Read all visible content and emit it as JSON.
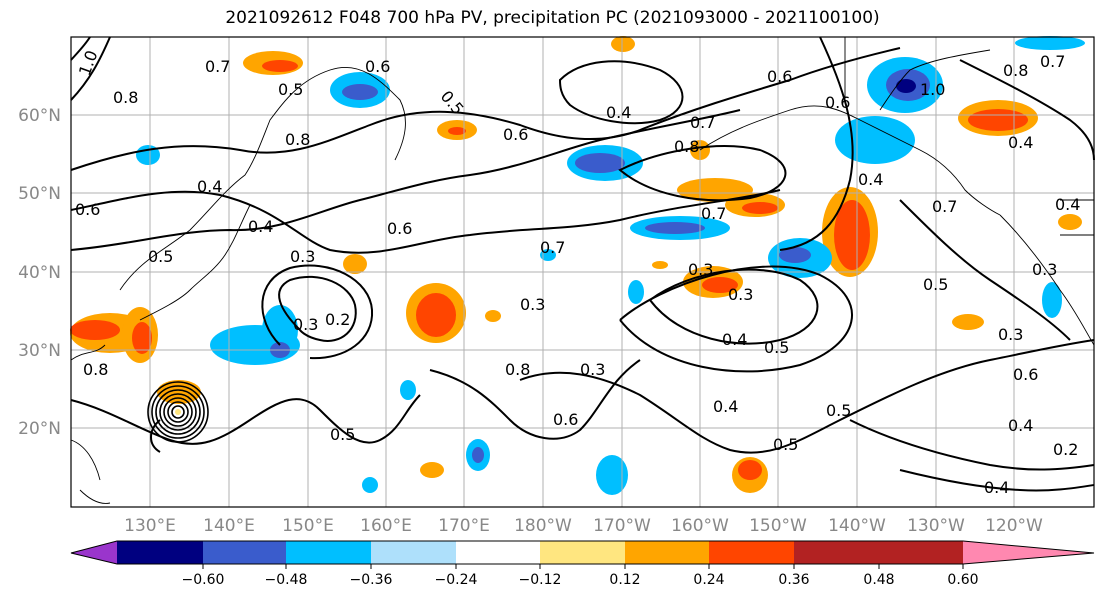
{
  "title": "2021092612 F048 700 hPa PV, precipitation PC (2021093000 - 2021100100)",
  "axes": {
    "lat_labels": [
      "60°N",
      "50°N",
      "40°N",
      "30°N",
      "20°N"
    ],
    "lon_labels": [
      "130°E",
      "140°E",
      "150°E",
      "160°E",
      "170°E",
      "180°W",
      "170°W",
      "160°W",
      "150°W",
      "140°W",
      "130°W",
      "120°W"
    ]
  },
  "colorbar": {
    "tick_labels": [
      "−0.60",
      "−0.48",
      "−0.36",
      "−0.24",
      "−0.12",
      "0.12",
      "0.24",
      "0.36",
      "0.48",
      "0.60"
    ],
    "colors": [
      "#9a35cc",
      "#000080",
      "#3a5ccc",
      "#00bfff",
      "#aee0fb",
      "#ffffff",
      "#ffe680",
      "#ffa500",
      "#ff4500",
      "#b22222",
      "#ff88b0"
    ]
  },
  "contour_labels": [
    "1.0",
    "0.8",
    "0.7",
    "0.5",
    "0.6",
    "0.5",
    "0.4",
    "0.6",
    "0.4",
    "0.7",
    "0.8",
    "0.6",
    "0.8",
    "0.6",
    "0.3",
    "0.4",
    "0.5",
    "0.7",
    "0.6",
    "0.7",
    "0.3",
    "0.5",
    "0.4",
    "0.3",
    "0.6",
    "0.5",
    "0.4",
    "0.4",
    "0.2",
    "0.3",
    "0.2",
    "0.8",
    "0.8",
    "0.3",
    "0.5",
    "0.4",
    "0.5",
    "0.6",
    "0.3",
    "0.8",
    "1.0",
    "0.7",
    "0.7",
    "0.4",
    "0.3",
    "0.3",
    "0.4",
    "0.5",
    "0.4",
    "0.6"
  ]
}
